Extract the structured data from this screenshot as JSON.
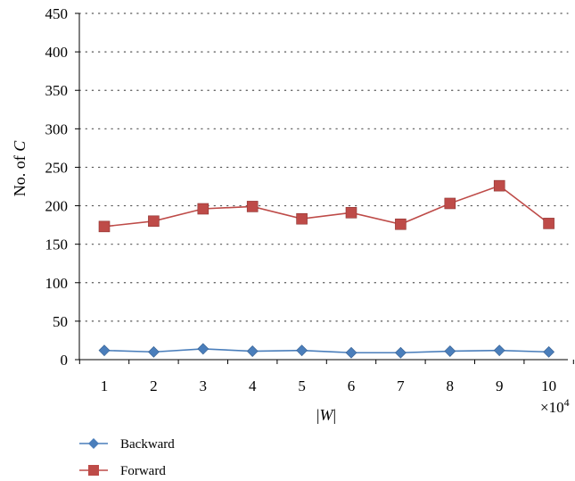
{
  "chart_data": {
    "type": "line",
    "x": [
      1,
      2,
      3,
      4,
      5,
      6,
      7,
      8,
      9,
      10
    ],
    "x_tick_labels": [
      "1",
      "2",
      "3",
      "4",
      "5",
      "6",
      "7",
      "8",
      "9",
      "10"
    ],
    "x_multiplier": "×10",
    "x_multiplier_exp": "4",
    "xlabel_pre": "|",
    "xlabel_var": "W",
    "xlabel_post": "|",
    "ylabel_pre": "No. of ",
    "ylabel_var": "C",
    "ylim": [
      0,
      450
    ],
    "y_ticks": [
      0,
      50,
      100,
      150,
      200,
      250,
      300,
      350,
      400,
      450
    ],
    "grid": "horizontal-dotted",
    "legend_position": "bottom-left",
    "series": [
      {
        "name": "Backward",
        "color": "#4a7ebb",
        "marker": "diamond",
        "values": [
          12,
          10,
          14,
          11,
          12,
          9,
          9,
          11,
          12,
          10
        ]
      },
      {
        "name": "Forward",
        "color": "#be4b48",
        "marker": "square",
        "values": [
          173,
          180,
          196,
          199,
          183,
          191,
          176,
          203,
          226,
          177
        ]
      }
    ]
  }
}
